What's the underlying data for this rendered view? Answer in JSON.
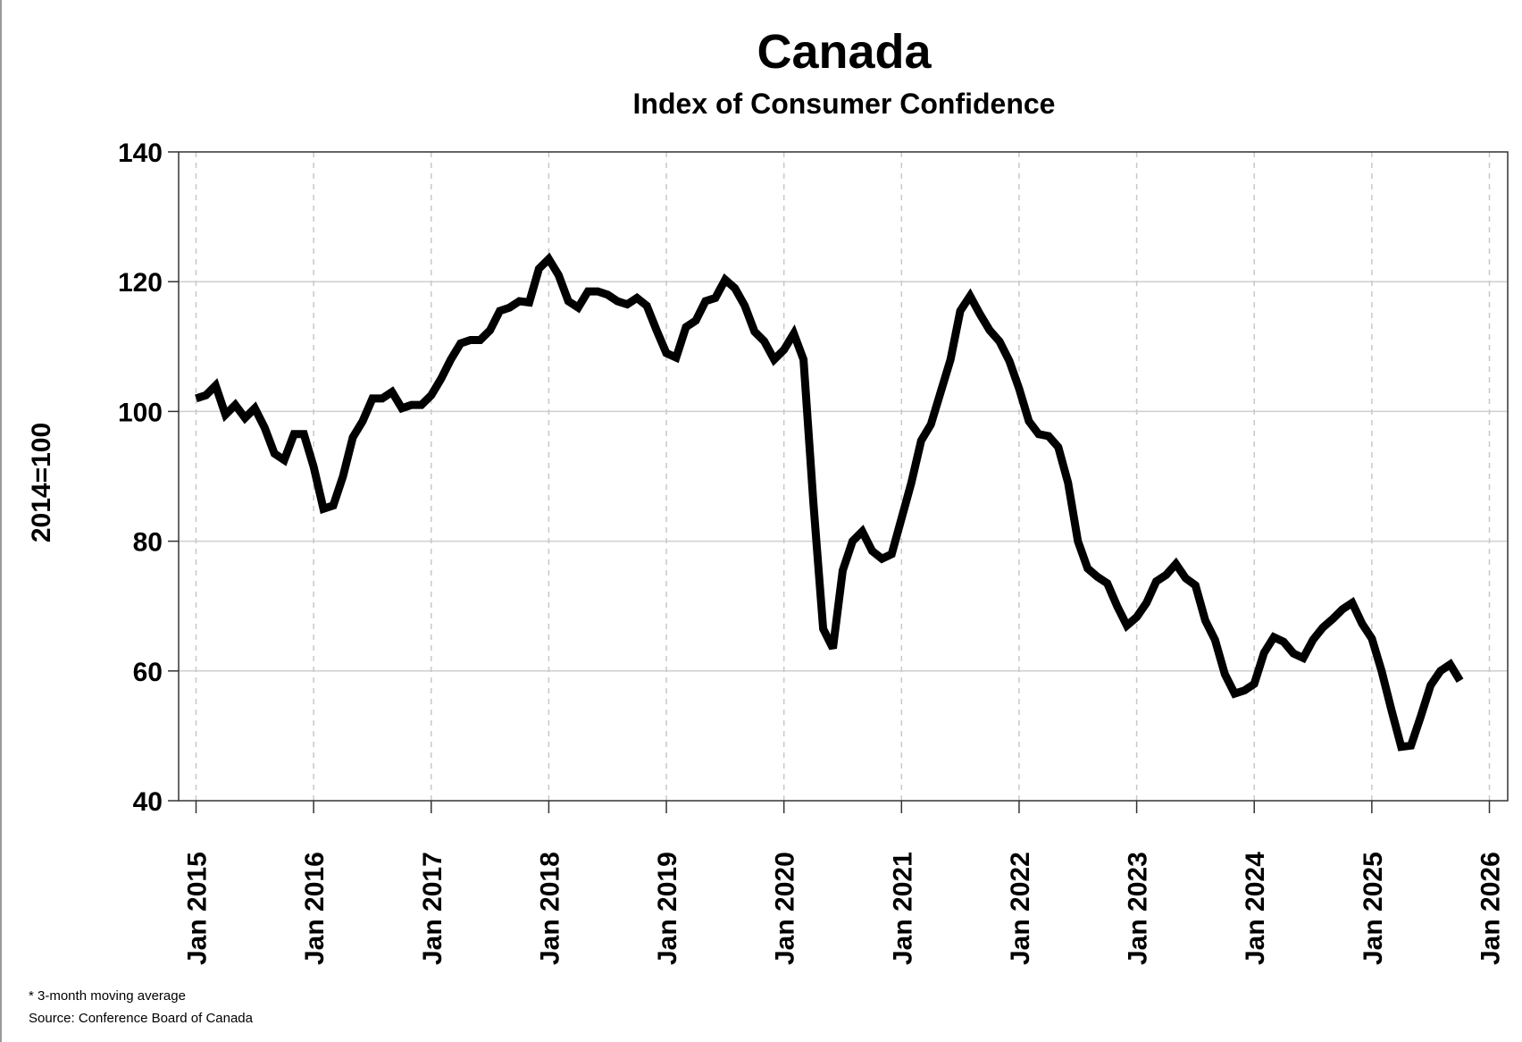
{
  "chart_data": {
    "type": "line",
    "title": "Canada",
    "subtitle": "Index of Consumer Confidence",
    "ylabel": "2014=100",
    "xlabel": "",
    "ylim": [
      40,
      140
    ],
    "yticks": [
      40,
      60,
      80,
      100,
      120,
      140
    ],
    "xticks": [
      "Jan 2015",
      "Jan 2016",
      "Jan 2017",
      "Jan 2018",
      "Jan 2019",
      "Jan 2020",
      "Jan 2021",
      "Jan 2022",
      "Jan 2023",
      "Jan 2024",
      "Jan 2025",
      "Jan 2026"
    ],
    "x_start": "2015-01",
    "x_frequency": "monthly",
    "grid": {
      "horizontal": "solid",
      "vertical": "dashed"
    },
    "line_color": "#000000",
    "values": [
      102,
      102.5,
      104,
      99.5,
      101,
      99,
      100.5,
      97.5,
      93.5,
      92.5,
      96.5,
      96.5,
      91.5,
      85,
      85.5,
      90,
      96,
      98.5,
      102,
      102,
      103,
      100.5,
      101,
      101,
      102.5,
      105,
      108,
      110.5,
      111,
      111,
      112.5,
      115.5,
      116,
      117,
      116.8,
      122,
      123.5,
      121,
      117,
      116,
      118.5,
      118.5,
      118,
      117,
      116.5,
      117.5,
      116.3,
      112.5,
      109,
      108.3,
      113,
      114,
      117,
      117.5,
      120.3,
      119,
      116.3,
      112.3,
      110.8,
      108,
      109.5,
      112,
      108,
      86,
      66.5,
      63.5,
      75.5,
      80,
      81.5,
      78.5,
      77.3,
      78,
      83.5,
      89,
      95.5,
      98,
      103,
      108,
      115.5,
      117.8,
      115,
      112.5,
      110.8,
      107.8,
      103.5,
      98.5,
      96.5,
      96.2,
      94.5,
      89,
      80,
      75.8,
      74.5,
      73.5,
      70,
      67,
      68.3,
      70.5,
      73.8,
      74.8,
      76.5,
      74.3,
      73.2,
      67.8,
      64.8,
      59.5,
      56.5,
      57,
      58,
      62.8,
      65.2,
      64.5,
      62.7,
      62,
      64.8,
      66.7,
      68,
      69.5,
      70.5,
      67.3,
      65,
      60,
      54,
      48.3,
      48.5,
      53,
      57.8,
      60,
      61,
      58.5
    ],
    "footnotes": [
      "* 3-month moving average",
      "Source: Conference Board of Canada"
    ]
  }
}
